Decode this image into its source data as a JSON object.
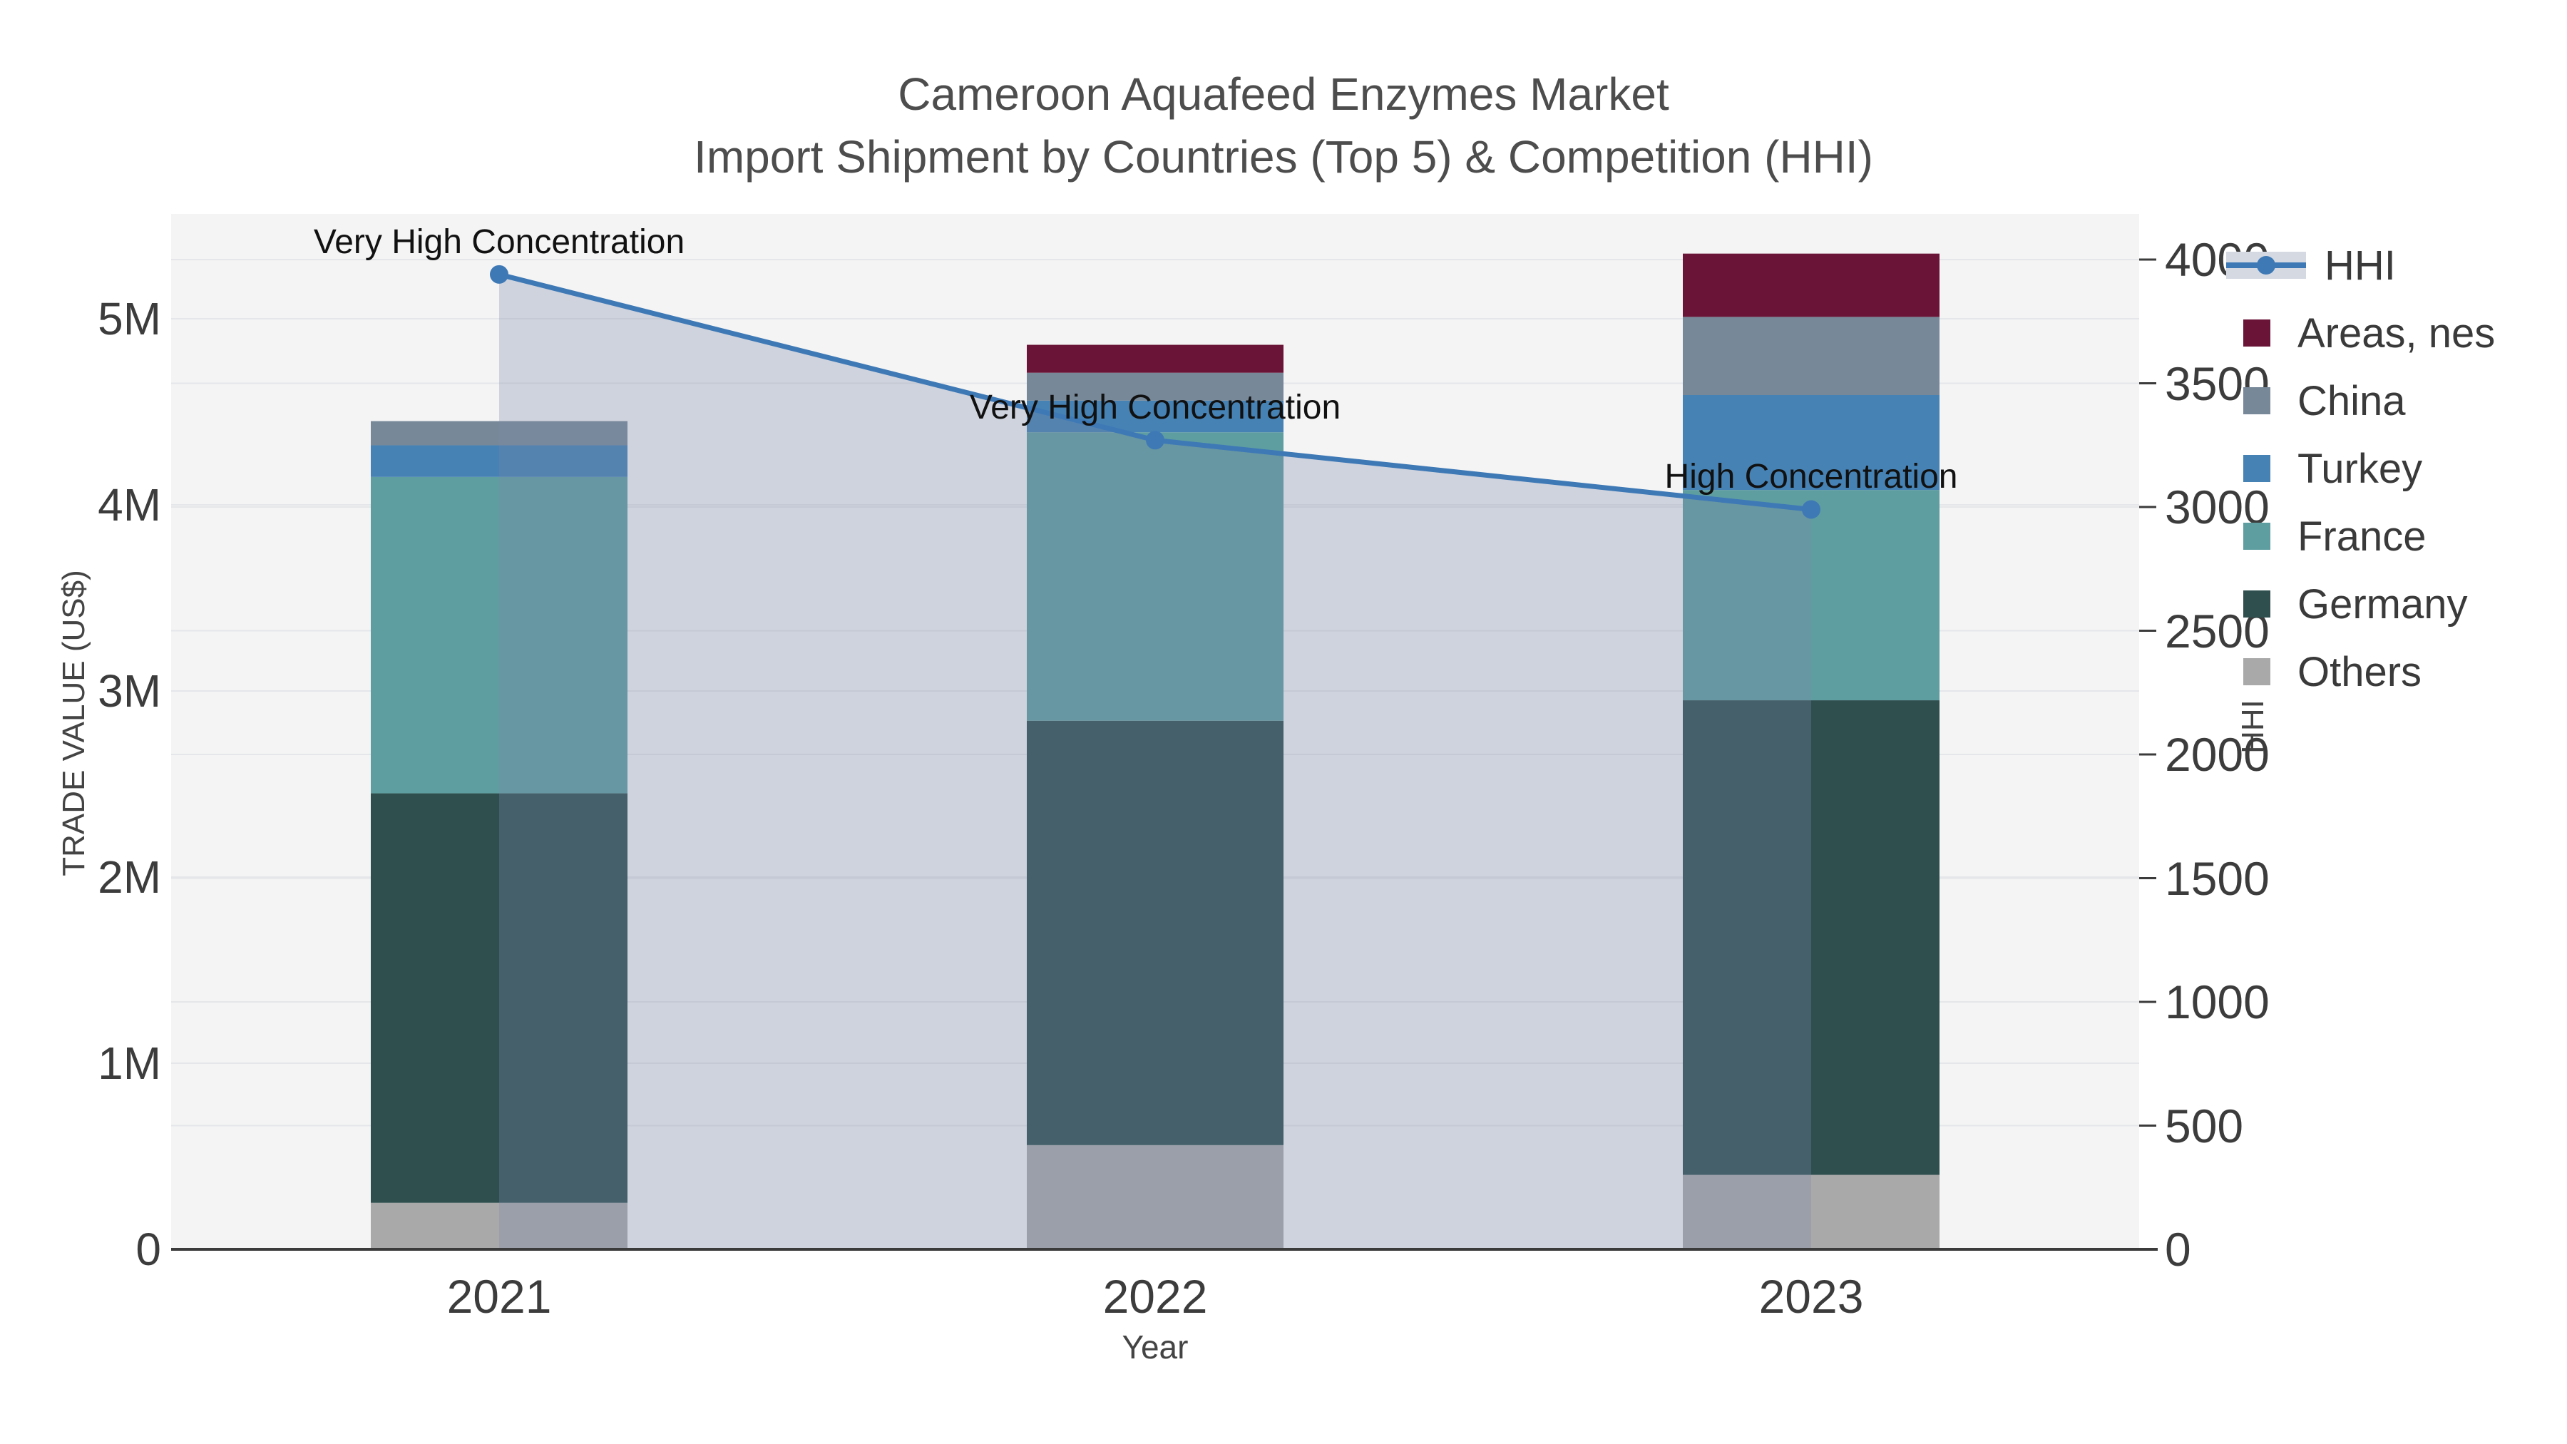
{
  "title": {
    "line1": "Cameroon Aquafeed Enzymes Market",
    "line2": "Import Shipment by Countries (Top 5) & Competition (HHI)"
  },
  "chart_data": {
    "type": "combo: stacked-bar + line (dual axis)",
    "categories": [
      "2021",
      "2022",
      "2023"
    ],
    "xlabel": "Year",
    "y_left": {
      "label": "TRADE VALUE (US$)",
      "ticks": [
        "0",
        "1M",
        "2M",
        "3M",
        "4M",
        "5M"
      ],
      "tick_values": [
        0,
        1000000,
        2000000,
        3000000,
        4000000,
        5000000
      ],
      "range": [
        0,
        5560000
      ],
      "grid": true
    },
    "y_right": {
      "label": "HHI",
      "ticks": [
        "0",
        "500",
        "1000",
        "1500",
        "2000",
        "2500",
        "3000",
        "3500",
        "4000"
      ],
      "tick_values": [
        0,
        500,
        1000,
        1500,
        2000,
        2500,
        3000,
        3500,
        4000
      ],
      "range": [
        0,
        4000
      ],
      "grid": true
    },
    "series": [
      {
        "name": "Others",
        "color": "#A9A9A9",
        "values": [
          250000,
          560000,
          400000
        ]
      },
      {
        "name": "Germany",
        "color": "#2F4F4F",
        "values": [
          2200000,
          2280000,
          2550000
        ]
      },
      {
        "name": "France",
        "color": "#5F9EA0",
        "values": [
          1700000,
          1550000,
          1130000
        ]
      },
      {
        "name": "Turkey",
        "color": "#4682B4",
        "values": [
          170000,
          170000,
          510000
        ]
      },
      {
        "name": "China",
        "color": "#778899",
        "values": [
          130000,
          150000,
          420000
        ]
      },
      {
        "name": "Areas, nes",
        "color": "#6A1537",
        "values": [
          0,
          150000,
          340000
        ]
      }
    ],
    "hhi": {
      "name": "HHI",
      "line_color": "#3E79B6",
      "area_fill_color": "rgba(124,136,169,0.30)",
      "values": [
        3940,
        3270,
        2990
      ],
      "annotations": [
        "Very High Concentration",
        "Very High Concentration",
        "High Concentration"
      ]
    },
    "legend": {
      "position": "right",
      "items": [
        "HHI",
        "Areas, nes",
        "China",
        "Turkey",
        "France",
        "Germany",
        "Others"
      ]
    },
    "plot_bg_color": "#f4f4f4",
    "gridline_color": "#e4e6e9",
    "axis_line_color": "#3b3b3b"
  }
}
